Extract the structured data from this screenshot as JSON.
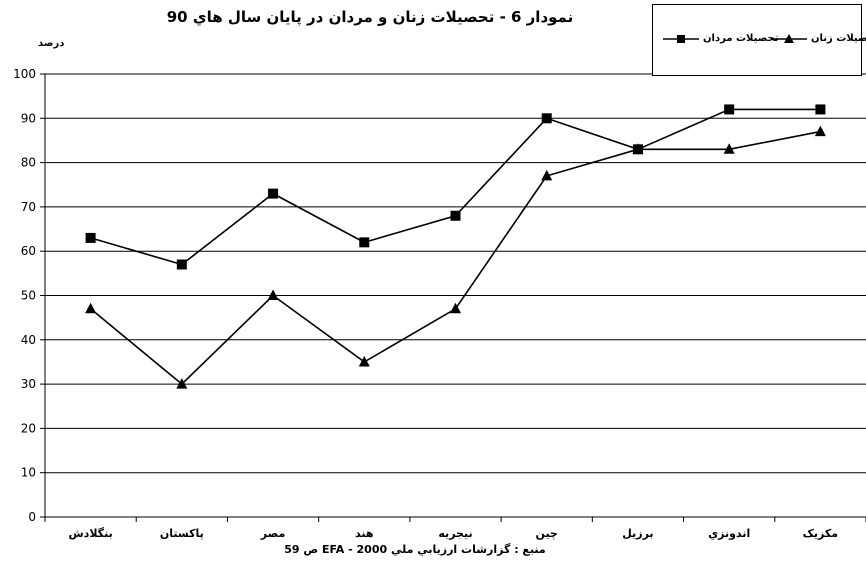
{
  "chart_data": {
    "type": "line",
    "title": "نمودار 6 - تحصیلات زنان و مردان در پایان سال هاي 90",
    "ylabel": "درصد",
    "xlabel": "",
    "ylim": [
      0,
      100
    ],
    "yticks": [
      0,
      10,
      20,
      30,
      40,
      50,
      60,
      70,
      80,
      90,
      100
    ],
    "grid": "horizontal",
    "legend_position": "top-right",
    "categories": [
      "بنگلادش",
      "پاکستان",
      "مصر",
      "هند",
      "نیجریه",
      "چین",
      "برزيل",
      "اندونزي",
      "مکزیک"
    ],
    "series": [
      {
        "name": "تحصیلات مردان",
        "marker": "square",
        "color": "#000000",
        "values": [
          63,
          57,
          73,
          62,
          68,
          90,
          83,
          92,
          92
        ]
      },
      {
        "name": "تحصیلات زنان",
        "marker": "triangle",
        "color": "#000000",
        "values": [
          47,
          30,
          50,
          35,
          47,
          77,
          83,
          83,
          87
        ]
      }
    ],
    "source": "منبع : گزارشات ارزيابي ملي 2000 - EFA ص 59"
  }
}
